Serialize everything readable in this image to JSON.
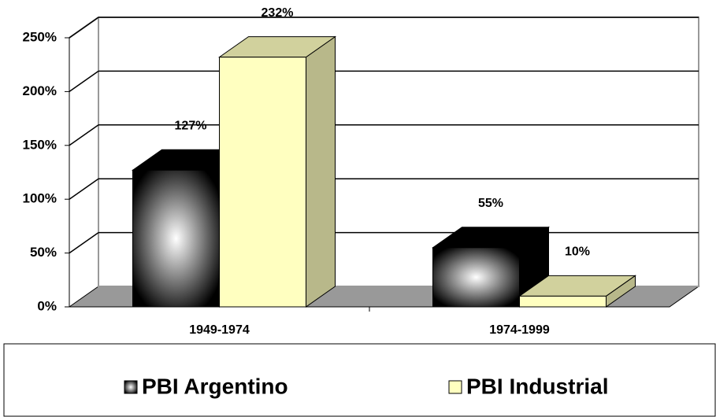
{
  "chart_data": {
    "type": "bar3d",
    "categories": [
      "1949-1974",
      "1974-1999"
    ],
    "series": [
      {
        "name": "PBI Argentino",
        "color": "#000000",
        "gradient": true,
        "values": [
          127,
          55
        ],
        "value_labels": [
          "127%",
          "55%"
        ]
      },
      {
        "name": "PBI Industrial",
        "color": "#ffffc0",
        "gradient": false,
        "values": [
          232,
          10
        ],
        "value_labels": [
          "232%",
          "10%"
        ]
      }
    ],
    "ylim": [
      0,
      250
    ],
    "yticks": [
      {
        "value": 0,
        "label": "0%"
      },
      {
        "value": 50,
        "label": "50%"
      },
      {
        "value": 100,
        "label": "100%"
      },
      {
        "value": 150,
        "label": "150%"
      },
      {
        "value": 200,
        "label": "200%"
      },
      {
        "value": 250,
        "label": "250%"
      }
    ],
    "grid": true,
    "legend": "bottom"
  }
}
